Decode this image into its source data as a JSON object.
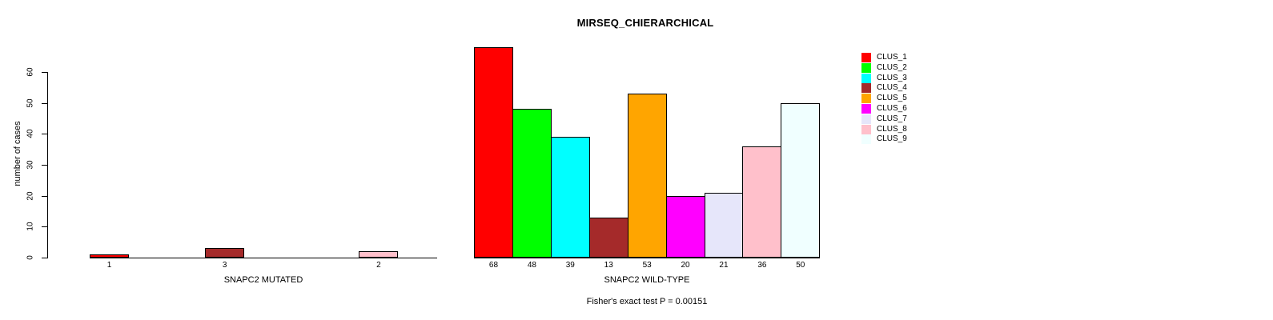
{
  "chart_data": {
    "type": "bar",
    "title": "MIRSEQ_CHIERARCHICAL",
    "ylabel": "number of cases",
    "ylim": [
      0,
      60
    ],
    "yticks": [
      0,
      10,
      20,
      30,
      40,
      50,
      60
    ],
    "grid": false,
    "legend_position": "right",
    "legend": [
      {
        "label": "CLUS_1",
        "color": "#FF0000"
      },
      {
        "label": "CLUS_2",
        "color": "#00FF00"
      },
      {
        "label": "CLUS_3",
        "color": "#00FFFF"
      },
      {
        "label": "CLUS_4",
        "color": "#A52A2A"
      },
      {
        "label": "CLUS_5",
        "color": "#FFA500"
      },
      {
        "label": "CLUS_6",
        "color": "#FF00FF"
      },
      {
        "label": "CLUS_7",
        "color": "#E6E6FA"
      },
      {
        "label": "CLUS_8",
        "color": "#FFC0CB"
      },
      {
        "label": "CLUS_9",
        "color": "#F0FFFF"
      }
    ],
    "panels": [
      {
        "xlabel": "SNAPC2 MUTATED",
        "slots": 9,
        "bars": [
          {
            "slot": 1,
            "cluster": "CLUS_1",
            "value": 1,
            "label": "1",
            "color": "#FF0000"
          },
          {
            "slot": 4,
            "cluster": "CLUS_4",
            "value": 3,
            "label": "3",
            "color": "#A52A2A"
          },
          {
            "slot": 8,
            "cluster": "CLUS_8",
            "value": 2,
            "label": "2",
            "color": "#FFC0CB"
          }
        ]
      },
      {
        "xlabel": "SNAPC2 WILD-TYPE",
        "slots": 9,
        "bars": [
          {
            "slot": 1,
            "cluster": "CLUS_1",
            "value": 68,
            "label": "68",
            "color": "#FF0000"
          },
          {
            "slot": 2,
            "cluster": "CLUS_2",
            "value": 48,
            "label": "48",
            "color": "#00FF00"
          },
          {
            "slot": 3,
            "cluster": "CLUS_3",
            "value": 39,
            "label": "39",
            "color": "#00FFFF"
          },
          {
            "slot": 4,
            "cluster": "CLUS_4",
            "value": 13,
            "label": "13",
            "color": "#A52A2A"
          },
          {
            "slot": 5,
            "cluster": "CLUS_5",
            "value": 53,
            "label": "53",
            "color": "#FFA500"
          },
          {
            "slot": 6,
            "cluster": "CLUS_6",
            "value": 20,
            "label": "20",
            "color": "#FF00FF"
          },
          {
            "slot": 7,
            "cluster": "CLUS_7",
            "value": 21,
            "label": "21",
            "color": "#E6E6FA"
          },
          {
            "slot": 8,
            "cluster": "CLUS_8",
            "value": 36,
            "label": "36",
            "color": "#FFC0CB"
          },
          {
            "slot": 9,
            "cluster": "CLUS_9",
            "value": 50,
            "label": "50",
            "color": "#F0FFFF"
          }
        ]
      }
    ],
    "annotation": "Fisher's exact test P = 0.00151"
  }
}
